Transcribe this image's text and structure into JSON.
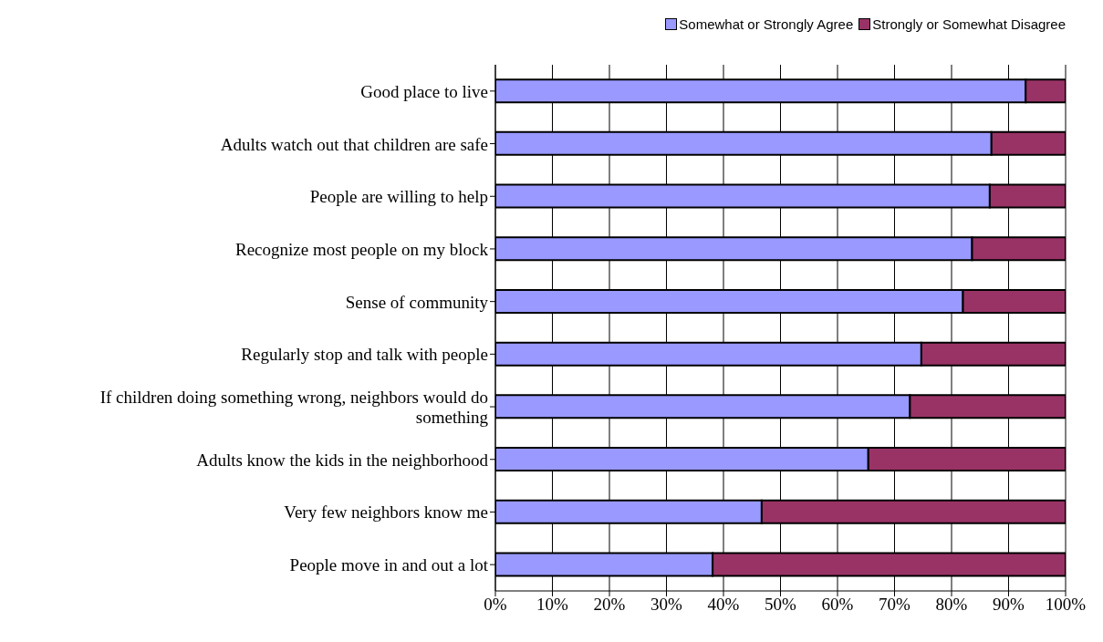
{
  "chart_data": {
    "type": "bar",
    "orientation": "horizontal",
    "stacked": true,
    "categories": [
      "Good place to live",
      "Adults watch out that children are safe",
      "People are willing to help",
      "Recognize most people on my block",
      "Sense of community",
      "Regularly stop and talk with people",
      "If children doing something wrong, neighbors would do something",
      "Adults know the kids in the neighborhood",
      "Very few neighbors know me",
      "People move in and out a lot"
    ],
    "series": [
      {
        "name": "Somewhat or Strongly Agree",
        "color": "#9999ff",
        "values": [
          93.0,
          87.0,
          86.7,
          83.6,
          82.0,
          74.7,
          72.7,
          65.4,
          46.7,
          38.1
        ]
      },
      {
        "name": "Strongly or Somewhat Disagree",
        "color": "#993366",
        "values": [
          7.0,
          13.0,
          13.3,
          16.4,
          18.0,
          25.3,
          27.3,
          34.6,
          53.3,
          61.9
        ]
      }
    ],
    "xlim": [
      0,
      100
    ],
    "xticks": [
      {
        "value": 0,
        "label": "0%"
      },
      {
        "value": 10,
        "label": "10%"
      },
      {
        "value": 20,
        "label": "20%"
      },
      {
        "value": 30,
        "label": "30%"
      },
      {
        "value": 40,
        "label": "40%"
      },
      {
        "value": 50,
        "label": "50%"
      },
      {
        "value": 60,
        "label": "60%"
      },
      {
        "value": 70,
        "label": "70%"
      },
      {
        "value": 80,
        "label": "80%"
      },
      {
        "value": 90,
        "label": "90%"
      },
      {
        "value": 100,
        "label": "100%"
      }
    ],
    "grid": "x",
    "legend": "top right"
  }
}
